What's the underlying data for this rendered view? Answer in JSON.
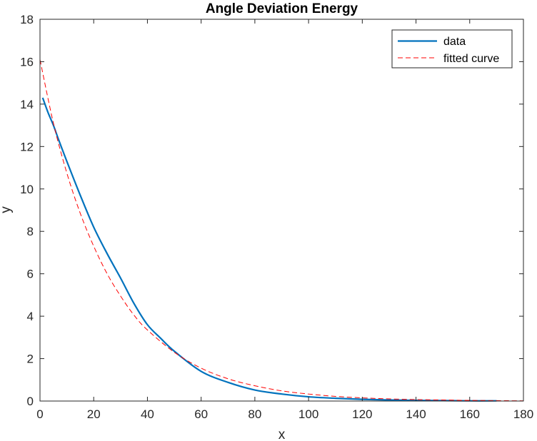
{
  "chart_data": {
    "type": "line",
    "title": "Angle Deviation Energy",
    "xlabel": "x",
    "ylabel": "y",
    "xlim": [
      0,
      180
    ],
    "ylim": [
      0,
      18
    ],
    "xticks": [
      "0",
      "20",
      "40",
      "60",
      "80",
      "100",
      "120",
      "140",
      "160",
      "180"
    ],
    "yticks": [
      "0",
      "2",
      "4",
      "6",
      "8",
      "10",
      "12",
      "14",
      "16",
      "18"
    ],
    "grid": false,
    "legend_position": "top-right",
    "series": [
      {
        "name": "data",
        "color": "#0072BD",
        "style": "solid",
        "x": [
          1,
          3,
          5,
          7,
          10,
          15,
          20,
          25,
          30,
          35,
          40,
          45,
          50,
          60,
          70,
          80,
          90,
          100,
          110,
          120,
          130,
          140,
          150,
          160,
          170
        ],
        "y": [
          14.3,
          13.6,
          13.0,
          12.3,
          11.3,
          9.7,
          8.2,
          6.95,
          5.8,
          4.6,
          3.6,
          2.95,
          2.35,
          1.4,
          0.88,
          0.52,
          0.33,
          0.2,
          0.13,
          0.08,
          0.05,
          0.03,
          0.02,
          0.01,
          0.01
        ]
      },
      {
        "name": "fitted curve",
        "color": "#FF0000",
        "style": "dashed",
        "x": [
          0,
          5,
          10,
          15,
          20,
          25,
          30,
          35,
          40,
          50,
          60,
          70,
          80,
          90,
          100,
          110,
          120,
          130,
          140,
          150,
          160,
          170,
          180
        ],
        "y": [
          16.1,
          13.1,
          10.75,
          8.85,
          7.3,
          6.0,
          4.95,
          4.05,
          3.35,
          2.3,
          1.55,
          1.05,
          0.72,
          0.48,
          0.33,
          0.22,
          0.15,
          0.1,
          0.07,
          0.05,
          0.03,
          0.02,
          0.01
        ]
      }
    ]
  }
}
